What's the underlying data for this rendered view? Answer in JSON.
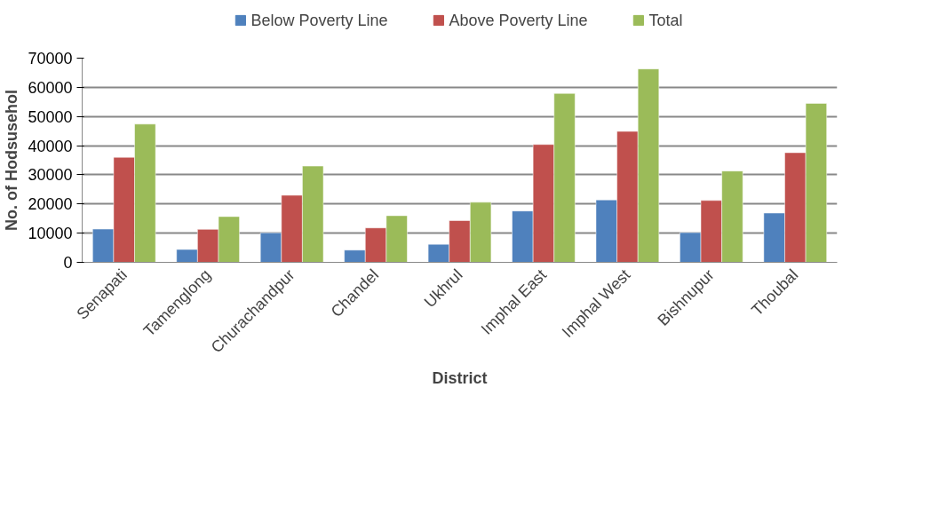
{
  "chart_data": {
    "type": "bar",
    "xlabel": "District",
    "ylabel": "No. of Hodsusehol",
    "categories": [
      "Senapati",
      "Tamenglong",
      "Churachandpur",
      "Chandel",
      "Ukhrul",
      "Imphal East",
      "Imphal West",
      "Bishnupur",
      "Thoubal"
    ],
    "series": [
      {
        "name": "Below Poverty Line",
        "color": "#4f81bd",
        "values": [
          11400,
          4400,
          10100,
          4200,
          6200,
          17600,
          21400,
          10200,
          16900
        ]
      },
      {
        "name": "Above Poverty Line",
        "color": "#c0504d",
        "values": [
          36000,
          11300,
          23000,
          11800,
          14300,
          40400,
          44900,
          21200,
          37600
        ]
      },
      {
        "name": "Total",
        "color": "#9bbb59",
        "values": [
          47400,
          15700,
          33000,
          16000,
          20600,
          57900,
          66300,
          31300,
          54500
        ]
      }
    ],
    "ylim": [
      0,
      70000
    ],
    "yticks": [
      0,
      10000,
      20000,
      30000,
      40000,
      50000,
      60000,
      70000
    ],
    "grid": "y",
    "legend": "top"
  }
}
